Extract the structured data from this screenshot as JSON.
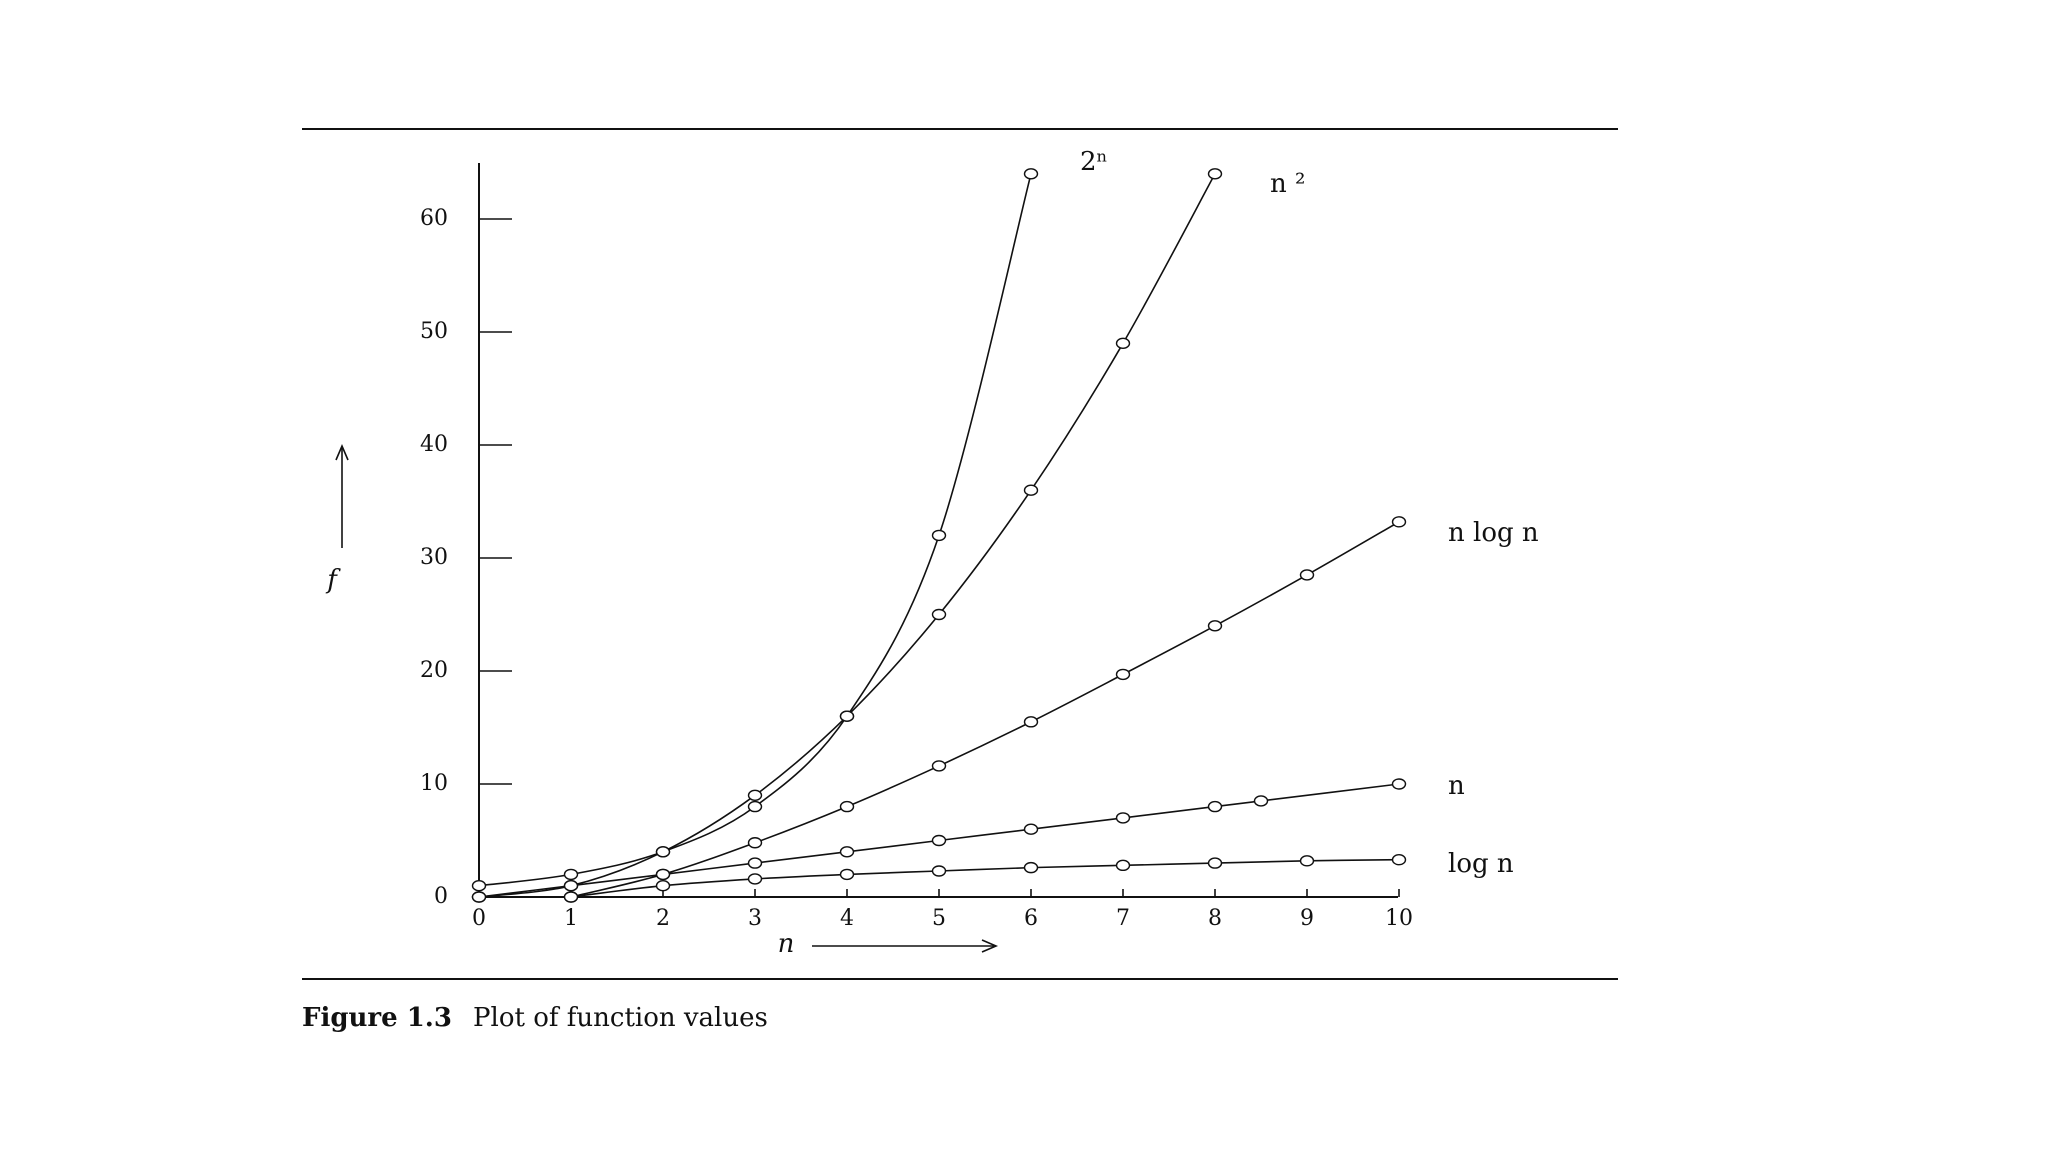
{
  "caption": {
    "number": "Figure 1.3",
    "text": "Plot of function values"
  },
  "chart_data": {
    "type": "line",
    "xlabel": "n",
    "ylabel": "f",
    "xlim": [
      0,
      10
    ],
    "ylim": [
      0,
      64
    ],
    "x_ticks": [
      "0",
      "1",
      "2",
      "3",
      "4",
      "5",
      "6",
      "7",
      "8",
      "9",
      "10"
    ],
    "y_ticks": [
      "0",
      "10",
      "20",
      "30",
      "40",
      "50",
      "60"
    ],
    "grid": false,
    "series": [
      {
        "name": "2ⁿ",
        "x": [
          0,
          1,
          2,
          3,
          4,
          5,
          6
        ],
        "y": [
          1,
          2,
          4,
          8,
          16,
          32,
          64
        ]
      },
      {
        "name": "n ²",
        "x": [
          0,
          1,
          2,
          3,
          4,
          5,
          6,
          7,
          8
        ],
        "y": [
          0,
          1,
          4,
          9,
          16,
          25,
          36,
          49,
          64
        ]
      },
      {
        "name": "n  log n",
        "x": [
          1,
          2,
          3,
          4,
          5,
          6,
          7,
          8,
          9,
          10
        ],
        "y": [
          0,
          2,
          4.8,
          8,
          11.6,
          15.5,
          19.7,
          24,
          28.5,
          33.2
        ]
      },
      {
        "name": "n",
        "x": [
          0,
          1,
          2,
          3,
          4,
          5,
          6,
          7,
          8,
          8.5,
          10
        ],
        "y": [
          0,
          1,
          2,
          3,
          4,
          5,
          6,
          7,
          8,
          8.5,
          10
        ]
      },
      {
        "name": "log n",
        "x": [
          1,
          2,
          3,
          4,
          5,
          6,
          7,
          8,
          9,
          10
        ],
        "y": [
          0,
          1,
          1.6,
          2,
          2.3,
          2.6,
          2.8,
          3,
          3.2,
          3.3
        ]
      }
    ]
  }
}
